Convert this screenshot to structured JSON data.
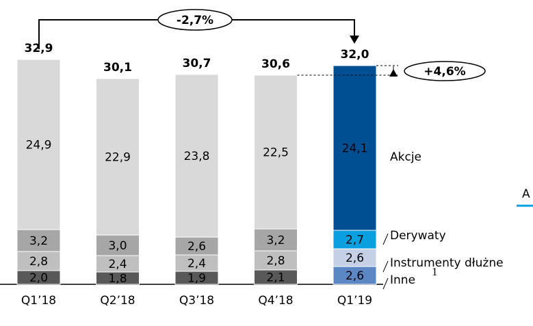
{
  "chart_data": {
    "type": "stacked_bar",
    "categories": [
      "Q1’18",
      "Q2’18",
      "Q3’18",
      "Q4’18",
      "Q1’19"
    ],
    "series": [
      {
        "name": "Inne",
        "colors": [
          "#595959",
          "#595959",
          "#595959",
          "#595959",
          "#5b87c5"
        ],
        "values": [
          2.0,
          1.8,
          1.9,
          2.1,
          2.6
        ],
        "value_labels": [
          "2,0",
          "1,8",
          "1,9",
          "2,1",
          "2,6"
        ]
      },
      {
        "name": "Instrumenty dłużne",
        "colors": [
          "#bfbfbf",
          "#bfbfbf",
          "#bfbfbf",
          "#bfbfbf",
          "#c5d0e6"
        ],
        "values": [
          2.8,
          2.4,
          2.4,
          2.8,
          2.6
        ],
        "value_labels": [
          "2,8",
          "2,4",
          "2,4",
          "2,8",
          "2,6"
        ]
      },
      {
        "name": "Derywaty",
        "colors": [
          "#a6a6a6",
          "#a6a6a6",
          "#a6a6a6",
          "#a6a6a6",
          "#0a9fdf"
        ],
        "values": [
          3.2,
          3.0,
          2.6,
          3.2,
          2.7
        ],
        "value_labels": [
          "3,2",
          "3,0",
          "2,6",
          "3,2",
          "2,7"
        ]
      },
      {
        "name": "Akcje",
        "colors": [
          "#d9d9d9",
          "#d9d9d9",
          "#d9d9d9",
          "#d9d9d9",
          "#004f93"
        ],
        "values": [
          24.9,
          22.9,
          23.8,
          22.5,
          24.1
        ],
        "value_labels": [
          "24,9",
          "22,9",
          "23,8",
          "22,5",
          "24,1"
        ]
      }
    ],
    "totals": {
      "values": [
        32.9,
        30.1,
        30.7,
        30.6,
        32.0
      ],
      "value_labels": [
        "32,9",
        "30,1",
        "30,7",
        "30,6",
        "32,0"
      ]
    },
    "change_first_last": "-2,7%",
    "change_last_prev": "+4,6%",
    "inne_footnote": "1",
    "clipped_text": "A"
  }
}
